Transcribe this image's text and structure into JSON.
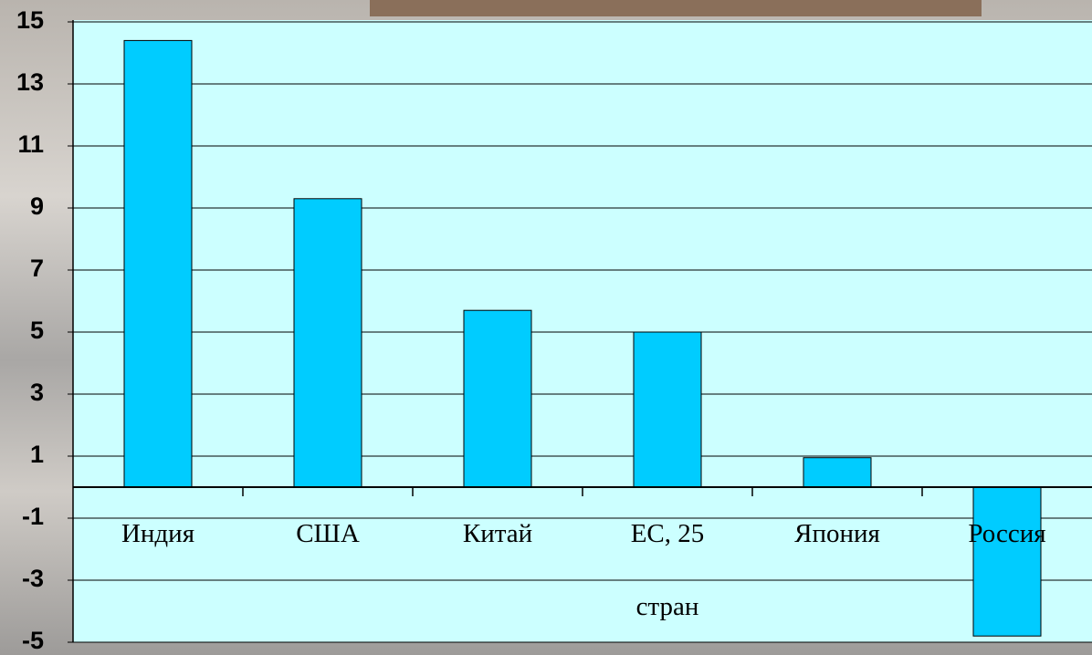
{
  "chart_data": {
    "type": "bar",
    "categories": [
      "Индия",
      "США",
      "Китай",
      "ЕС, 25 стран",
      "Япония",
      "Россия"
    ],
    "values": [
      14.4,
      9.3,
      5.7,
      5.0,
      0.95,
      -4.8
    ],
    "color": "#00ccff",
    "ylim": [
      -5,
      15
    ],
    "yticks": [
      -5,
      -3,
      -1,
      1,
      3,
      5,
      7,
      9,
      11,
      13,
      15
    ],
    "grid": true
  }
}
